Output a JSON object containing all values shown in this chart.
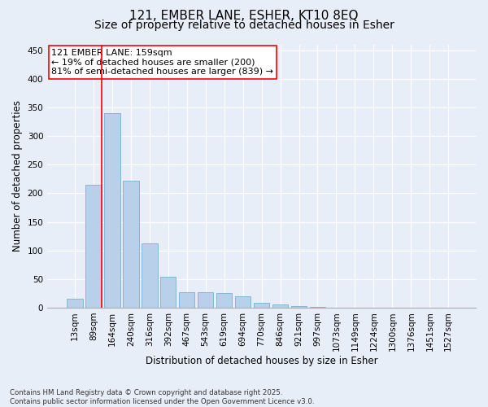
{
  "title_line1": "121, EMBER LANE, ESHER, KT10 8EQ",
  "title_line2": "Size of property relative to detached houses in Esher",
  "xlabel": "Distribution of detached houses by size in Esher",
  "ylabel": "Number of detached properties",
  "categories": [
    "13sqm",
    "89sqm",
    "164sqm",
    "240sqm",
    "316sqm",
    "392sqm",
    "467sqm",
    "543sqm",
    "619sqm",
    "694sqm",
    "770sqm",
    "846sqm",
    "921sqm",
    "997sqm",
    "1073sqm",
    "1149sqm",
    "1224sqm",
    "1300sqm",
    "1376sqm",
    "1451sqm",
    "1527sqm"
  ],
  "values": [
    16,
    215,
    340,
    222,
    113,
    54,
    27,
    27,
    25,
    19,
    8,
    6,
    3,
    1,
    0,
    0,
    0,
    0,
    0,
    0,
    0
  ],
  "bar_color": "#b8d0ea",
  "bar_edge_color": "#7aafd4",
  "vline_color": "red",
  "vline_x": 1.425,
  "annotation_text": "121 EMBER LANE: 159sqm\n← 19% of detached houses are smaller (200)\n81% of semi-detached houses are larger (839) →",
  "annotation_box_color": "white",
  "annotation_box_edge_color": "red",
  "ylim": [
    0,
    460
  ],
  "yticks": [
    0,
    50,
    100,
    150,
    200,
    250,
    300,
    350,
    400,
    450
  ],
  "background_color": "#e8eef8",
  "grid_color": "white",
  "footer": "Contains HM Land Registry data © Crown copyright and database right 2025.\nContains public sector information licensed under the Open Government Licence v3.0.",
  "title_fontsize": 11,
  "subtitle_fontsize": 10,
  "axis_label_fontsize": 8.5,
  "tick_fontsize": 7.5,
  "annotation_fontsize": 8
}
